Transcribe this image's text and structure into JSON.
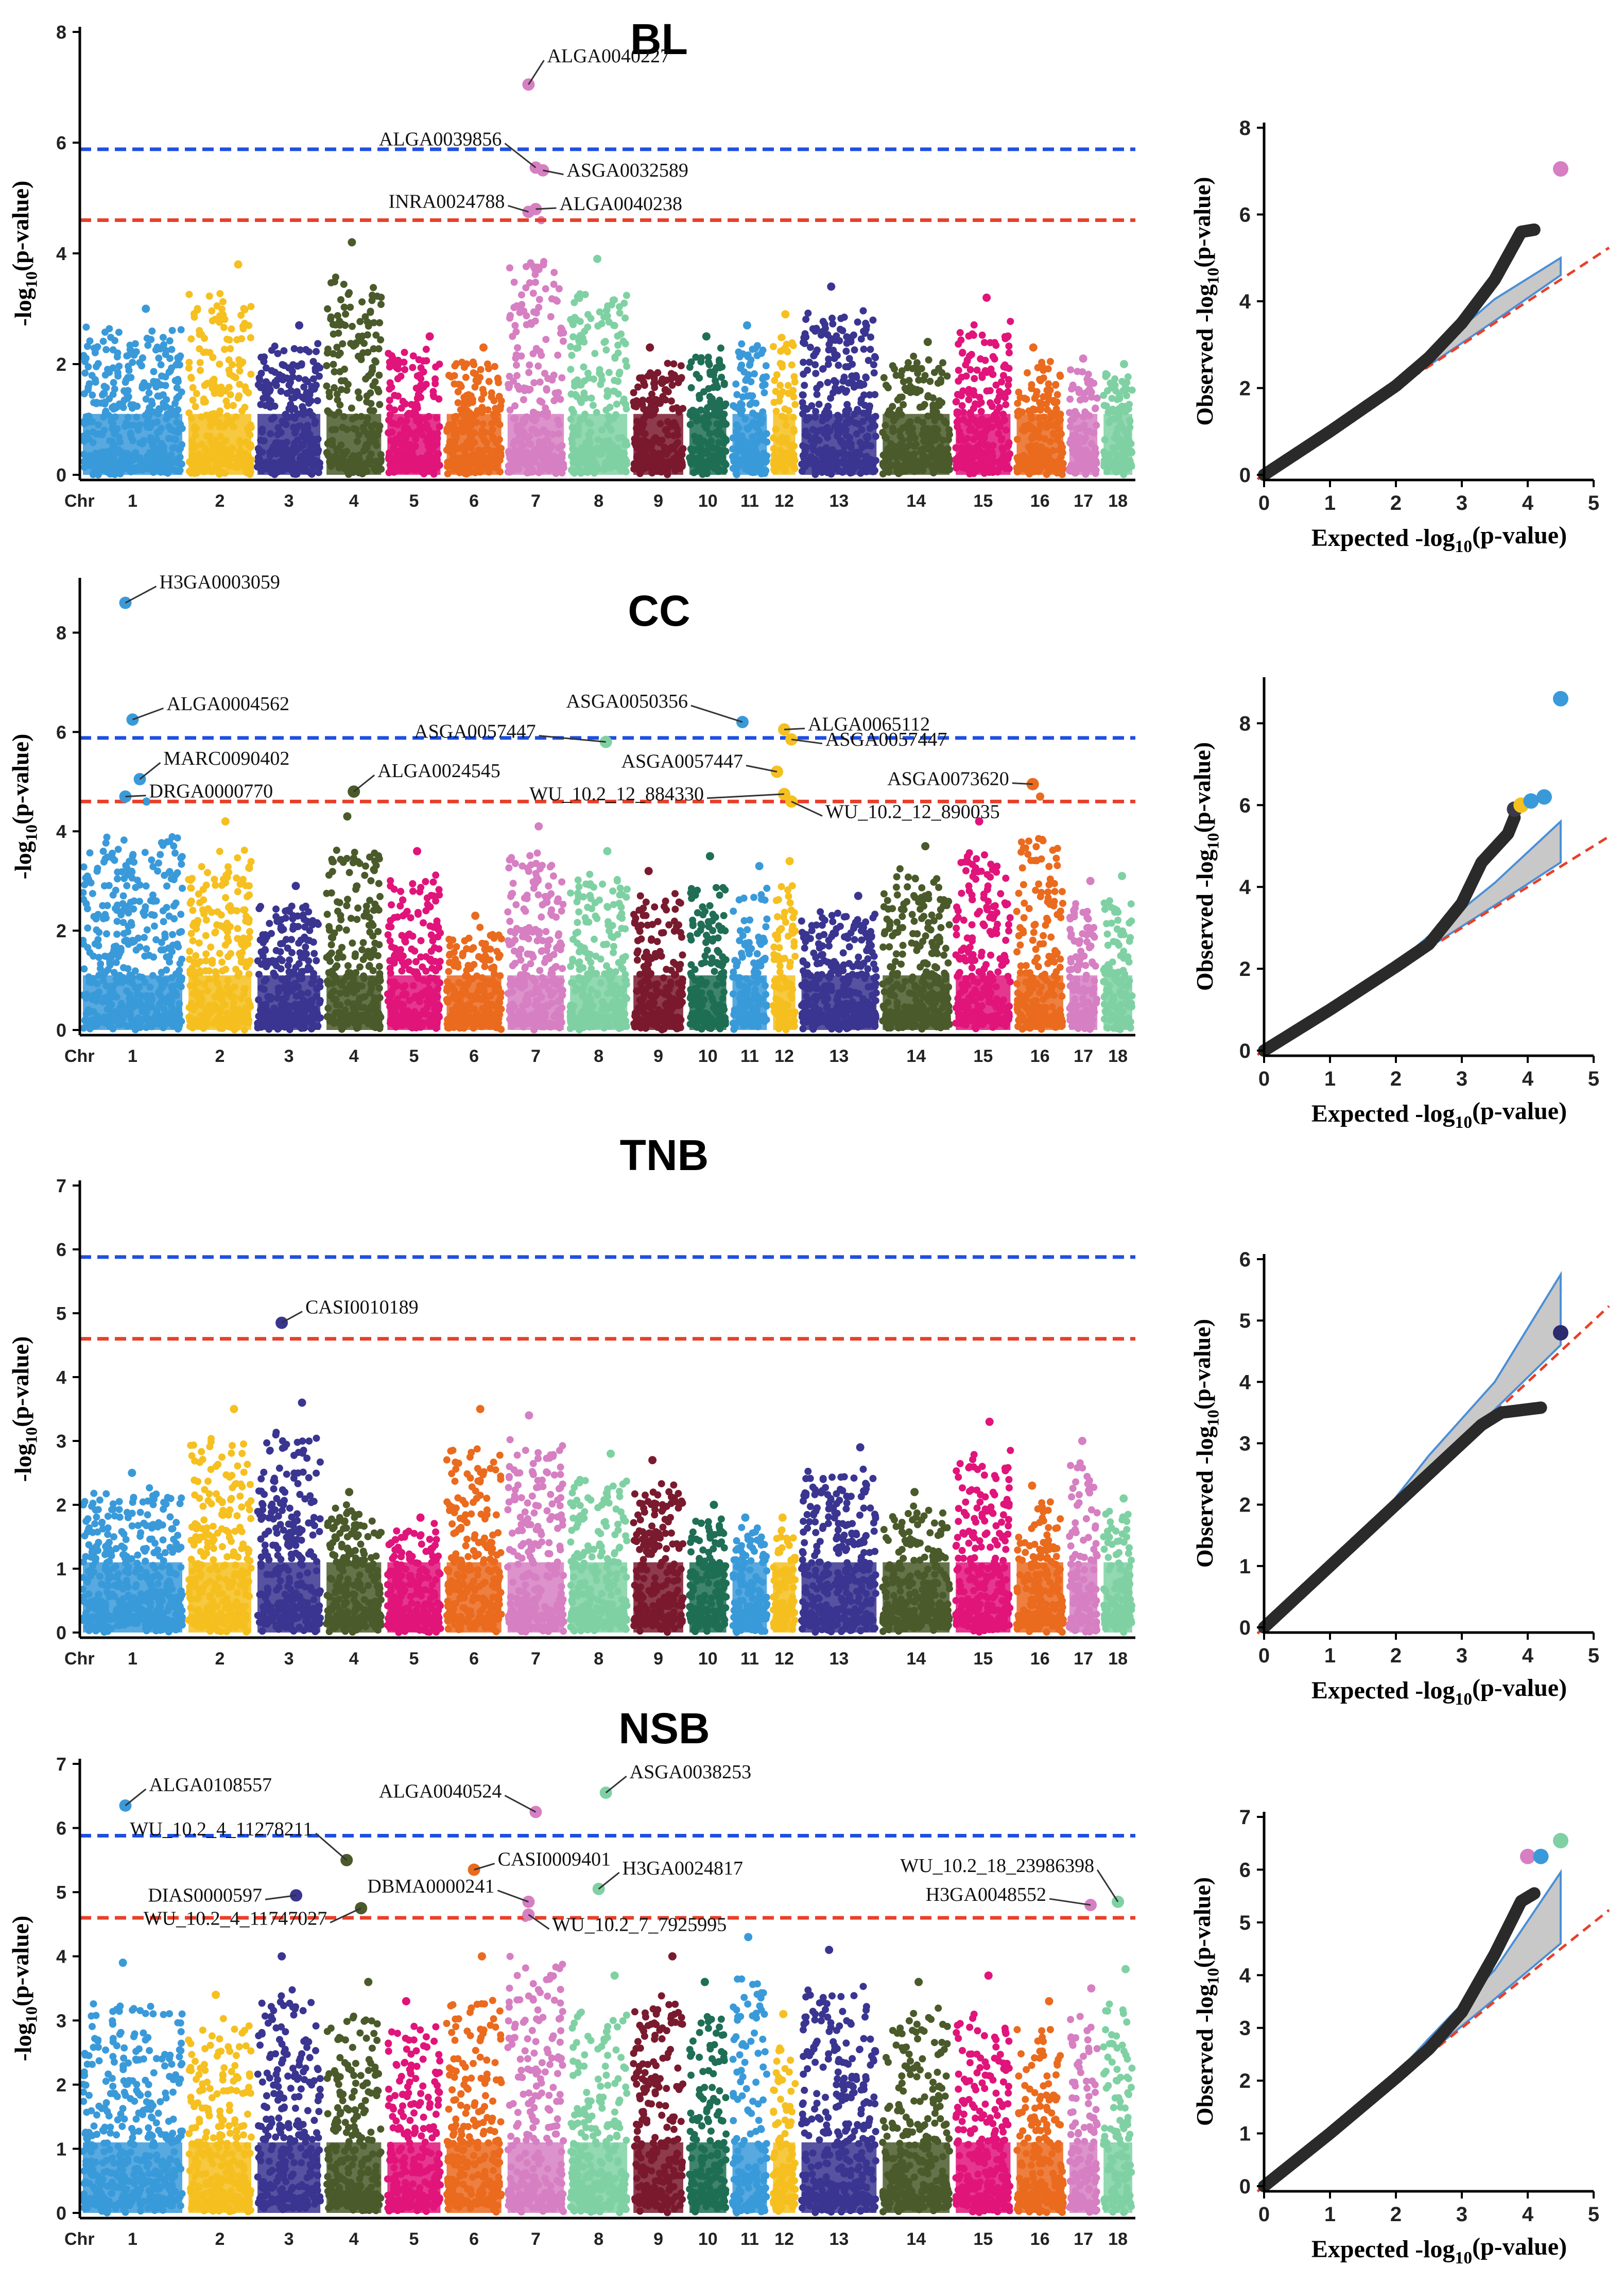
{
  "chart_data": [
    {
      "type": "scatter",
      "subtype": "manhattan",
      "title": "BL",
      "ylabel": "-log10(p-value)",
      "xlabel": "Chr",
      "ylim": [
        0,
        8
      ],
      "yticks": [
        0,
        2,
        4,
        6,
        8
      ],
      "chromosomes": [
        "1",
        "2",
        "3",
        "4",
        "5",
        "6",
        "7",
        "8",
        "9",
        "10",
        "11",
        "12",
        "13",
        "14",
        "15",
        "16",
        "17",
        "18"
      ],
      "chrom_peaks": [
        3.0,
        3.8,
        2.7,
        4.2,
        2.5,
        2.3,
        4.6,
        3.9,
        2.3,
        2.5,
        2.7,
        2.9,
        3.4,
        2.4,
        3.2,
        2.3,
        2.1,
        2.0
      ],
      "thresholds": [
        {
          "name": "significant",
          "value": 5.88,
          "color": "#1f4fe0"
        },
        {
          "name": "suggestive",
          "value": 4.6,
          "color": "#e8402a"
        }
      ],
      "annotations": [
        {
          "label": "ALGA0040227",
          "chr": "7",
          "y": 7.05
        },
        {
          "label": "ALGA0039856",
          "chr": "7",
          "y": 5.55
        },
        {
          "label": "ASGA0032589",
          "chr": "7",
          "y": 5.5
        },
        {
          "label": "INRA0024788",
          "chr": "7",
          "y": 4.75
        },
        {
          "label": "ALGA0040238",
          "chr": "7",
          "y": 4.8
        }
      ]
    },
    {
      "type": "scatter",
      "subtype": "manhattan",
      "title": "CC",
      "ylabel": "-log10(p-value)",
      "xlabel": "Chr",
      "ylim": [
        0,
        9
      ],
      "yticks": [
        0,
        2,
        4,
        6,
        8
      ],
      "chromosomes": [
        "1",
        "2",
        "3",
        "4",
        "5",
        "6",
        "7",
        "8",
        "9",
        "10",
        "11",
        "12",
        "13",
        "14",
        "15",
        "16",
        "17",
        "18"
      ],
      "chrom_peaks": [
        4.6,
        4.2,
        2.9,
        4.3,
        3.6,
        2.3,
        4.1,
        3.6,
        3.2,
        3.5,
        3.3,
        3.4,
        2.7,
        3.7,
        4.2,
        4.7,
        3.0,
        3.1
      ],
      "thresholds": [
        {
          "name": "significant",
          "value": 5.88,
          "color": "#1f4fe0"
        },
        {
          "name": "suggestive",
          "value": 4.6,
          "color": "#e8402a"
        }
      ],
      "annotations": [
        {
          "label": "H3GA0003059",
          "chr": "1",
          "y": 8.6
        },
        {
          "label": "ALGA0004562",
          "chr": "1",
          "y": 6.25
        },
        {
          "label": "MARC0090402",
          "chr": "1",
          "y": 5.05
        },
        {
          "label": "DRGA0000770",
          "chr": "1",
          "y": 4.7
        },
        {
          "label": "ALGA0024545",
          "chr": "4",
          "y": 4.8
        },
        {
          "label": "ASGA0057447",
          "chr": "8",
          "y": 5.8
        },
        {
          "label": "ASGA0050356",
          "chr": "11",
          "y": 6.2
        },
        {
          "label": "ALGA0065112",
          "chr": "12",
          "y": 6.05
        },
        {
          "label": "ASGA0057447",
          "chr": "12",
          "y": 5.85
        },
        {
          "label": "ASGA0057447",
          "chr": "12",
          "y": 5.2
        },
        {
          "label": "WU_10.2_12_884330",
          "chr": "12",
          "y": 4.75
        },
        {
          "label": "WU_10.2_12_890035",
          "chr": "12",
          "y": 4.6
        },
        {
          "label": "ASGA0073620",
          "chr": "16",
          "y": 4.95
        }
      ]
    },
    {
      "type": "scatter",
      "subtype": "manhattan",
      "title": "TNB",
      "ylabel": "-log10(p-value)",
      "xlabel": "Chr",
      "ylim": [
        0,
        7
      ],
      "yticks": [
        0,
        1,
        2,
        3,
        4,
        5,
        6,
        7
      ],
      "chromosomes": [
        "1",
        "2",
        "3",
        "4",
        "5",
        "6",
        "7",
        "8",
        "9",
        "10",
        "11",
        "12",
        "13",
        "14",
        "15",
        "16",
        "17",
        "18"
      ],
      "chrom_peaks": [
        2.5,
        3.5,
        3.6,
        2.2,
        1.8,
        3.5,
        3.4,
        2.8,
        2.7,
        2.0,
        1.8,
        1.8,
        2.9,
        2.2,
        3.3,
        2.3,
        3.0,
        2.1
      ],
      "thresholds": [
        {
          "name": "significant",
          "value": 5.88,
          "color": "#1f4fe0"
        },
        {
          "name": "suggestive",
          "value": 4.6,
          "color": "#e8402a"
        }
      ],
      "annotations": [
        {
          "label": "CASI0010189",
          "chr": "3",
          "y": 4.85
        }
      ]
    },
    {
      "type": "scatter",
      "subtype": "manhattan",
      "title": "NSB",
      "ylabel": "-log10(p-value)",
      "xlabel": "Chr",
      "ylim": [
        0,
        7
      ],
      "yticks": [
        0,
        1,
        2,
        3,
        4,
        5,
        6,
        7
      ],
      "chromosomes": [
        "1",
        "2",
        "3",
        "4",
        "5",
        "6",
        "7",
        "8",
        "9",
        "10",
        "11",
        "12",
        "13",
        "14",
        "15",
        "16",
        "17",
        "18"
      ],
      "chrom_peaks": [
        3.9,
        3.4,
        4.0,
        3.6,
        3.3,
        4.0,
        4.6,
        3.7,
        4.0,
        3.6,
        4.3,
        3.1,
        4.1,
        3.6,
        3.7,
        3.3,
        3.5,
        3.8
      ],
      "thresholds": [
        {
          "name": "significant",
          "value": 5.88,
          "color": "#1f4fe0"
        },
        {
          "name": "suggestive",
          "value": 4.6,
          "color": "#e8402a"
        }
      ],
      "annotations": [
        {
          "label": "ALGA0108557",
          "chr": "1",
          "y": 6.35
        },
        {
          "label": "ALGA0040524",
          "chr": "7",
          "y": 6.25
        },
        {
          "label": "ASGA0038253",
          "chr": "8",
          "y": 6.55
        },
        {
          "label": "WU_10.2_4_11278211",
          "chr": "4",
          "y": 5.5
        },
        {
          "label": "CASI0009401",
          "chr": "6",
          "y": 5.35
        },
        {
          "label": "DIAS0000597",
          "chr": "3",
          "y": 4.95
        },
        {
          "label": "DBMA0000241",
          "chr": "7",
          "y": 4.85
        },
        {
          "label": "H3GA0024817",
          "chr": "8",
          "y": 5.05
        },
        {
          "label": "WU_10.2_4_11747027",
          "chr": "4",
          "y": 4.75
        },
        {
          "label": "WU_10.2_7_7925995",
          "chr": "7",
          "y": 4.65
        },
        {
          "label": "WU_10.2_18_23986398",
          "chr": "18",
          "y": 4.85
        },
        {
          "label": "H3GA0048552",
          "chr": "17",
          "y": 4.8
        }
      ]
    },
    {
      "type": "scatter",
      "subtype": "qq",
      "trait": "BL",
      "xlabel": "Expected -log10(p-value)",
      "ylabel": "Observed -log10(p-value)",
      "xlim": [
        0,
        5
      ],
      "ylim": [
        0,
        8
      ],
      "xticks": [
        0,
        1,
        2,
        3,
        4,
        5
      ],
      "yticks": [
        0,
        2,
        4,
        6,
        8
      ],
      "curve": [
        [
          0,
          0
        ],
        [
          1,
          1
        ],
        [
          2,
          2.05
        ],
        [
          2.5,
          2.7
        ],
        [
          3,
          3.5
        ],
        [
          3.5,
          4.5
        ],
        [
          3.9,
          5.6
        ],
        [
          4.1,
          5.65
        ]
      ],
      "ci_upper": [
        [
          1.8,
          1.85
        ],
        [
          2.5,
          2.75
        ],
        [
          3.5,
          4.05
        ],
        [
          4.5,
          5.0
        ]
      ],
      "ci_lower": [
        [
          1.8,
          1.8
        ],
        [
          2.5,
          2.52
        ],
        [
          3.5,
          3.55
        ],
        [
          4.5,
          4.6
        ]
      ],
      "highlight": [
        {
          "x": 4.5,
          "y": 7.05,
          "color": "#d67fc2"
        }
      ]
    },
    {
      "type": "scatter",
      "subtype": "qq",
      "trait": "CC",
      "xlabel": "Expected -log10(p-value)",
      "ylabel": "Observed -log10(p-value)",
      "xlim": [
        0,
        5
      ],
      "ylim": [
        0,
        9
      ],
      "xticks": [
        0,
        1,
        2,
        3,
        4,
        5
      ],
      "yticks": [
        0,
        2,
        4,
        6,
        8
      ],
      "curve": [
        [
          0,
          0
        ],
        [
          1,
          1
        ],
        [
          2,
          2.05
        ],
        [
          2.5,
          2.6
        ],
        [
          3,
          3.6
        ],
        [
          3.3,
          4.6
        ],
        [
          3.7,
          5.3
        ],
        [
          3.8,
          5.7
        ]
      ],
      "ci_upper": [
        [
          1.8,
          1.85
        ],
        [
          2.5,
          2.8
        ],
        [
          3.5,
          4.1
        ],
        [
          4.5,
          5.6
        ]
      ],
      "ci_lower": [
        [
          1.8,
          1.8
        ],
        [
          2.5,
          2.52
        ],
        [
          3.5,
          3.55
        ],
        [
          4.5,
          4.6
        ]
      ],
      "highlight": [
        {
          "x": 3.8,
          "y": 5.9,
          "color": "#3a3a4a"
        },
        {
          "x": 3.9,
          "y": 6.0,
          "color": "#f5c020"
        },
        {
          "x": 4.05,
          "y": 6.1,
          "color": "#3a9ad9"
        },
        {
          "x": 4.25,
          "y": 6.2,
          "color": "#3a9ad9"
        },
        {
          "x": 4.5,
          "y": 8.6,
          "color": "#3a9ad9"
        }
      ]
    },
    {
      "type": "scatter",
      "subtype": "qq",
      "trait": "TNB",
      "xlabel": "Expected -log10(p-value)",
      "ylabel": "Observed -log10(p-value)",
      "xlim": [
        0,
        5
      ],
      "ylim": [
        0,
        6
      ],
      "xticks": [
        0,
        1,
        2,
        3,
        4,
        5
      ],
      "yticks": [
        0,
        1,
        2,
        3,
        4,
        5,
        6
      ],
      "curve": [
        [
          0,
          0
        ],
        [
          1,
          1
        ],
        [
          2,
          2
        ],
        [
          2.5,
          2.5
        ],
        [
          3,
          3.0
        ],
        [
          3.3,
          3.3
        ],
        [
          3.6,
          3.5
        ],
        [
          4.2,
          3.58
        ]
      ],
      "ci_upper": [
        [
          1.8,
          1.85
        ],
        [
          2.5,
          2.8
        ],
        [
          3.5,
          4.0
        ],
        [
          4.5,
          5.75
        ]
      ],
      "ci_lower": [
        [
          1.8,
          1.8
        ],
        [
          2.5,
          2.52
        ],
        [
          3.5,
          3.55
        ],
        [
          4.5,
          4.6
        ]
      ],
      "highlight": [
        {
          "x": 4.5,
          "y": 4.8,
          "color": "#2d2a6e"
        }
      ]
    },
    {
      "type": "scatter",
      "subtype": "qq",
      "trait": "NSB",
      "xlabel": "Expected -log10(p-value)",
      "ylabel": "Observed -log10(p-value)",
      "xlim": [
        0,
        5
      ],
      "ylim": [
        0,
        7
      ],
      "xticks": [
        0,
        1,
        2,
        3,
        4,
        5
      ],
      "yticks": [
        0,
        1,
        2,
        3,
        4,
        5,
        6,
        7
      ],
      "curve": [
        [
          0,
          0
        ],
        [
          1,
          1
        ],
        [
          2,
          2.05
        ],
        [
          2.5,
          2.6
        ],
        [
          3,
          3.3
        ],
        [
          3.5,
          4.4
        ],
        [
          3.9,
          5.4
        ],
        [
          4.1,
          5.55
        ]
      ],
      "ci_upper": [
        [
          1.8,
          1.85
        ],
        [
          2.5,
          2.8
        ],
        [
          3.5,
          4.1
        ],
        [
          4.5,
          5.95
        ]
      ],
      "ci_lower": [
        [
          1.8,
          1.8
        ],
        [
          2.5,
          2.52
        ],
        [
          3.5,
          3.55
        ],
        [
          4.5,
          4.6
        ]
      ],
      "highlight": [
        {
          "x": 4.0,
          "y": 6.25,
          "color": "#d67fc2"
        },
        {
          "x": 4.2,
          "y": 6.25,
          "color": "#3a9ad9"
        },
        {
          "x": 4.5,
          "y": 6.55,
          "color": "#7fd1a3"
        }
      ]
    }
  ],
  "chrom_colors": [
    "#3a9ad9",
    "#f5c020",
    "#3a3590",
    "#4a5a2a",
    "#e0147a",
    "#ea6a1e",
    "#d67fc2",
    "#7fd1a3",
    "#7a1a2e",
    "#1f6e55",
    "#3a9ad9",
    "#f5c020",
    "#3a3590",
    "#4a5a2a",
    "#e0147a",
    "#ea6a1e",
    "#d67fc2",
    "#7fd1a3"
  ]
}
